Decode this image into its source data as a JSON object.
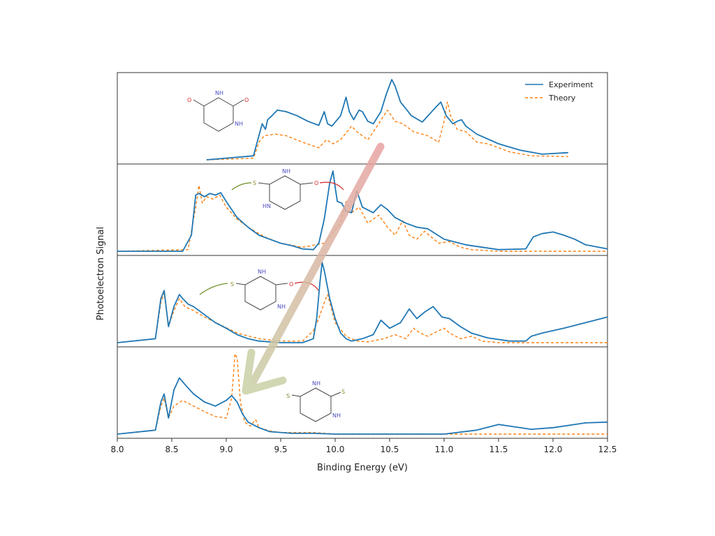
{
  "chart_data": {
    "type": "line",
    "xlabel": "Binding Energy (eV)",
    "ylabel": "Photoelectron Signal",
    "xlim": [
      8.0,
      12.5
    ],
    "x_ticks": [
      "8.0",
      "8.5",
      "9.0",
      "9.5",
      "10.0",
      "10.5",
      "11.0",
      "11.5",
      "12.0",
      "12.5"
    ],
    "legend": {
      "position": "top-right",
      "entries": [
        "Experiment",
        "Theory"
      ]
    },
    "colors": {
      "Experiment": "#1f77b4",
      "Theory": "#ff7f0e",
      "arrow_start": "#e8a2a2",
      "arrow_end": "#c9cfa6"
    },
    "panels": [
      {
        "molecule": "uracil",
        "atom_labels": [
          "O",
          "NH",
          "O",
          "NH"
        ],
        "series": [
          {
            "name": "Experiment",
            "x": [
              8.82,
              9.25,
              9.3,
              9.33,
              9.36,
              9.38,
              9.42,
              9.47,
              9.55,
              9.65,
              9.75,
              9.85,
              9.9,
              9.93,
              9.97,
              10.05,
              10.1,
              10.13,
              10.17,
              10.22,
              10.25,
              10.3,
              10.35,
              10.42,
              10.47,
              10.52,
              10.55,
              10.6,
              10.7,
              10.8,
              10.92,
              10.97,
              11.02,
              11.08,
              11.12,
              11.16,
              11.2,
              11.3,
              11.5,
              11.7,
              11.9,
              12.14
            ],
            "y": [
              0.0,
              0.05,
              0.3,
              0.45,
              0.38,
              0.5,
              0.55,
              0.62,
              0.6,
              0.55,
              0.48,
              0.43,
              0.6,
              0.45,
              0.42,
              0.55,
              0.78,
              0.6,
              0.5,
              0.62,
              0.6,
              0.48,
              0.45,
              0.6,
              0.82,
              1.0,
              0.92,
              0.72,
              0.55,
              0.47,
              0.65,
              0.72,
              0.55,
              0.45,
              0.48,
              0.5,
              0.42,
              0.32,
              0.2,
              0.12,
              0.07,
              0.09
            ]
          },
          {
            "name": "Theory",
            "x": [
              8.82,
              9.25,
              9.3,
              9.35,
              9.45,
              9.55,
              9.7,
              9.85,
              9.92,
              9.98,
              10.05,
              10.15,
              10.2,
              10.3,
              10.4,
              10.48,
              10.55,
              10.62,
              10.72,
              10.85,
              10.95,
              11.0,
              11.03,
              11.06,
              11.12,
              11.2,
              11.3,
              11.4,
              11.6,
              11.8,
              12.14
            ],
            "y": [
              0.0,
              0.02,
              0.22,
              0.3,
              0.32,
              0.3,
              0.22,
              0.15,
              0.25,
              0.2,
              0.25,
              0.42,
              0.35,
              0.25,
              0.45,
              0.62,
              0.48,
              0.45,
              0.35,
              0.3,
              0.22,
              0.48,
              0.72,
              0.55,
              0.38,
              0.35,
              0.22,
              0.2,
              0.1,
              0.05,
              0.04
            ]
          }
        ]
      },
      {
        "molecule": "2,4-dithiouracil-like (S / O)",
        "atom_labels": [
          "S",
          "NH",
          "O",
          "HN"
        ],
        "series": [
          {
            "name": "Experiment",
            "x": [
              8.0,
              8.6,
              8.68,
              8.72,
              8.75,
              8.8,
              8.85,
              8.9,
              8.95,
              9.0,
              9.1,
              9.2,
              9.3,
              9.4,
              9.5,
              9.6,
              9.7,
              9.8,
              9.85,
              9.9,
              9.95,
              9.98,
              10.0,
              10.02,
              10.06,
              10.1,
              10.15,
              10.2,
              10.25,
              10.35,
              10.42,
              10.48,
              10.55,
              10.65,
              10.75,
              10.85,
              11.0,
              11.2,
              11.5,
              11.75,
              11.82,
              11.9,
              12.0,
              12.1,
              12.2,
              12.3,
              12.5
            ],
            "y": [
              0.0,
              0.0,
              0.2,
              0.7,
              0.72,
              0.68,
              0.72,
              0.7,
              0.73,
              0.62,
              0.42,
              0.3,
              0.2,
              0.15,
              0.1,
              0.07,
              0.03,
              0.02,
              0.1,
              0.4,
              0.85,
              1.0,
              0.8,
              0.62,
              0.6,
              0.5,
              0.48,
              0.75,
              0.55,
              0.48,
              0.58,
              0.52,
              0.42,
              0.35,
              0.3,
              0.28,
              0.15,
              0.08,
              0.02,
              0.03,
              0.18,
              0.22,
              0.24,
              0.2,
              0.15,
              0.08,
              0.03
            ]
          },
          {
            "name": "Theory",
            "x": [
              8.0,
              8.65,
              8.72,
              8.75,
              8.78,
              8.82,
              8.88,
              8.94,
              9.0,
              9.1,
              9.2,
              9.35,
              9.5,
              9.7,
              9.9,
              10.05,
              10.1,
              10.15,
              10.22,
              10.3,
              10.4,
              10.48,
              10.55,
              10.62,
              10.68,
              10.75,
              10.82,
              10.88,
              10.95,
              11.05,
              11.15,
              11.25,
              11.5,
              12.0,
              12.5
            ],
            "y": [
              0.0,
              0.02,
              0.55,
              0.82,
              0.6,
              0.68,
              0.65,
              0.7,
              0.55,
              0.4,
              0.3,
              0.18,
              0.1,
              0.05,
              0.1,
              0.35,
              0.62,
              0.48,
              0.55,
              0.35,
              0.45,
              0.3,
              0.2,
              0.38,
              0.2,
              0.15,
              0.25,
              0.18,
              0.1,
              0.12,
              0.05,
              0.02,
              0.0,
              0.0,
              0.0
            ]
          }
        ]
      },
      {
        "molecule": "2-thiouracil-like (S / O)",
        "atom_labels": [
          "S",
          "NH",
          "O",
          "NH"
        ],
        "series": [
          {
            "name": "Experiment",
            "x": [
              8.0,
              8.35,
              8.4,
              8.43,
              8.47,
              8.52,
              8.57,
              8.6,
              8.65,
              8.7,
              8.8,
              8.9,
              9.0,
              9.1,
              9.2,
              9.3,
              9.5,
              9.7,
              9.8,
              9.83,
              9.86,
              9.88,
              9.9,
              9.95,
              10.0,
              10.05,
              10.1,
              10.15,
              10.25,
              10.35,
              10.42,
              10.5,
              10.6,
              10.68,
              10.75,
              10.82,
              10.9,
              10.98,
              11.05,
              11.15,
              11.25,
              11.4,
              11.6,
              11.75,
              11.8,
              11.9,
              12.1,
              12.3,
              12.5
            ],
            "y": [
              0.0,
              0.05,
              0.55,
              0.65,
              0.2,
              0.45,
              0.6,
              0.55,
              0.48,
              0.45,
              0.35,
              0.25,
              0.18,
              0.1,
              0.05,
              0.02,
              0.0,
              0.0,
              0.05,
              0.3,
              0.75,
              1.0,
              0.9,
              0.55,
              0.3,
              0.12,
              0.05,
              0.02,
              0.05,
              0.1,
              0.28,
              0.18,
              0.25,
              0.42,
              0.3,
              0.38,
              0.45,
              0.32,
              0.3,
              0.2,
              0.12,
              0.06,
              0.02,
              0.02,
              0.08,
              0.12,
              0.18,
              0.25,
              0.32
            ]
          },
          {
            "name": "Theory",
            "x": [
              8.0,
              8.35,
              8.4,
              8.43,
              8.47,
              8.52,
              8.57,
              8.62,
              8.7,
              8.8,
              8.95,
              9.1,
              9.3,
              9.5,
              9.7,
              9.8,
              9.85,
              9.9,
              9.93,
              9.96,
              10.0,
              10.1,
              10.2,
              10.3,
              10.45,
              10.55,
              10.65,
              10.72,
              10.78,
              10.85,
              10.95,
              11.0,
              11.05,
              11.15,
              11.25,
              11.35,
              11.5,
              12.5
            ],
            "y": [
              0.0,
              0.05,
              0.5,
              0.62,
              0.2,
              0.4,
              0.55,
              0.45,
              0.4,
              0.32,
              0.22,
              0.12,
              0.05,
              0.02,
              0.02,
              0.15,
              0.3,
              0.5,
              0.6,
              0.45,
              0.25,
              0.08,
              0.02,
              0.01,
              0.05,
              0.1,
              0.05,
              0.18,
              0.12,
              0.08,
              0.15,
              0.18,
              0.12,
              0.05,
              0.08,
              0.02,
              0.0,
              0.0
            ]
          }
        ]
      },
      {
        "molecule": "2,4-dithiouracil (S / S)",
        "atom_labels": [
          "S",
          "NH",
          "S",
          "NH"
        ],
        "series": [
          {
            "name": "Experiment",
            "x": [
              8.0,
              8.35,
              8.4,
              8.43,
              8.47,
              8.52,
              8.57,
              8.62,
              8.7,
              8.8,
              8.9,
              9.0,
              9.05,
              9.1,
              9.15,
              9.2,
              9.3,
              9.4,
              9.6,
              9.8,
              10.0,
              11.0,
              11.3,
              11.5,
              11.6,
              11.8,
              12.0,
              12.3,
              12.5
            ],
            "y": [
              0.0,
              0.05,
              0.4,
              0.5,
              0.2,
              0.55,
              0.7,
              0.62,
              0.5,
              0.4,
              0.35,
              0.42,
              0.48,
              0.4,
              0.25,
              0.15,
              0.08,
              0.03,
              0.01,
              0.01,
              0.0,
              0.0,
              0.05,
              0.12,
              0.1,
              0.06,
              0.08,
              0.14,
              0.15
            ]
          },
          {
            "name": "Theory",
            "x": [
              8.0,
              8.35,
              8.4,
              8.43,
              8.47,
              8.52,
              8.6,
              8.7,
              8.8,
              8.9,
              9.0,
              9.05,
              9.08,
              9.1,
              9.13,
              9.17,
              9.22,
              9.27,
              9.3,
              9.4,
              9.5,
              9.8,
              10.0,
              12.5
            ],
            "y": [
              0.0,
              0.05,
              0.35,
              0.45,
              0.2,
              0.35,
              0.42,
              0.35,
              0.28,
              0.22,
              0.2,
              0.45,
              1.0,
              0.95,
              0.4,
              0.15,
              0.1,
              0.18,
              0.08,
              0.04,
              0.02,
              0.02,
              0.0,
              0.0
            ]
          }
        ]
      }
    ]
  }
}
